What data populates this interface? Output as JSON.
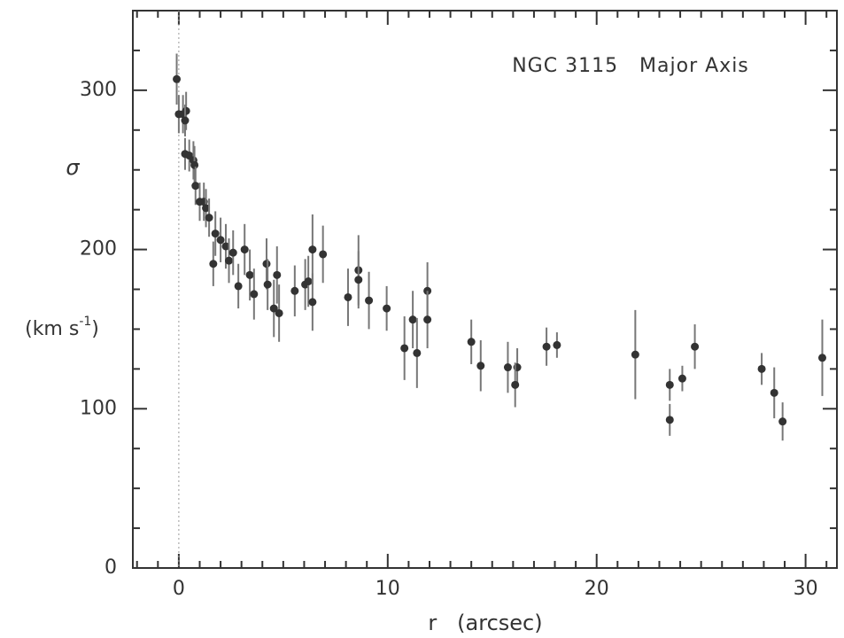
{
  "chart_data": {
    "type": "scatter",
    "annotation": "NGC 3115   Major Axis",
    "xlabel": "r   (arcsec)",
    "ylabel_symbol": "σ",
    "ylabel_unit": [
      "(km s",
      "-1",
      ")"
    ],
    "x": [
      -0.1,
      0,
      0.2,
      0.35,
      0.3,
      0.3,
      0.5,
      0.7,
      0.75,
      0.8,
      1.0,
      1.2,
      1.3,
      1.45,
      1.75,
      1.65,
      2.0,
      2.25,
      2.4,
      2.6,
      2.85,
      3.15,
      3.4,
      3.6,
      4.2,
      4.25,
      4.55,
      4.7,
      4.8,
      5.55,
      6.05,
      6.2,
      6.4,
      6.4,
      6.9,
      8.1,
      8.6,
      8.6,
      9.1,
      9.95,
      10.8,
      11.2,
      11.4,
      11.9,
      11.9,
      14.0,
      14.45,
      15.75,
      16.2,
      16.1,
      17.6,
      18.1,
      21.85,
      23.5,
      23.5,
      24.1,
      24.7,
      27.9,
      28.5,
      28.9,
      30.8
    ],
    "values": [
      307,
      285,
      285,
      287,
      281,
      260,
      259,
      256,
      253,
      240,
      230,
      230,
      226,
      220,
      210,
      191,
      206,
      202,
      193,
      198,
      177,
      200,
      184,
      172,
      191,
      178,
      163,
      184,
      160,
      174,
      178,
      180,
      200,
      167,
      197,
      170,
      187,
      181,
      168,
      163,
      138,
      156,
      135,
      174,
      156,
      142,
      127,
      126,
      126,
      115,
      139,
      140,
      134,
      115,
      93,
      119,
      139,
      125,
      110,
      92,
      132
    ],
    "errors": [
      16,
      12,
      12,
      12,
      10,
      10,
      10,
      12,
      12,
      12,
      12,
      12,
      12,
      12,
      14,
      14,
      14,
      14,
      14,
      14,
      14,
      16,
      16,
      16,
      16,
      16,
      18,
      18,
      18,
      16,
      16,
      16,
      22,
      18,
      18,
      18,
      22,
      18,
      18,
      14,
      20,
      18,
      22,
      18,
      18,
      14,
      16,
      16,
      12,
      14,
      12,
      8,
      28,
      10,
      10,
      8,
      14,
      10,
      16,
      12,
      24
    ],
    "color": "#333333",
    "xlim": [
      -2.2,
      31.5
    ],
    "ylim": [
      0,
      350
    ],
    "xticks": [
      0,
      10,
      20,
      30
    ],
    "yticks": [
      0,
      100,
      200,
      300
    ],
    "xminorticks": [
      -2,
      -1,
      1,
      2,
      3,
      4,
      5,
      6,
      7,
      8,
      9,
      11,
      12,
      13,
      14,
      15,
      16,
      17,
      18,
      19,
      21,
      22,
      23,
      24,
      25,
      26,
      27,
      28,
      29,
      31
    ],
    "yminorticks": [
      25,
      50,
      75,
      125,
      150,
      175,
      225,
      250,
      275,
      325
    ],
    "zero_line": true
  }
}
